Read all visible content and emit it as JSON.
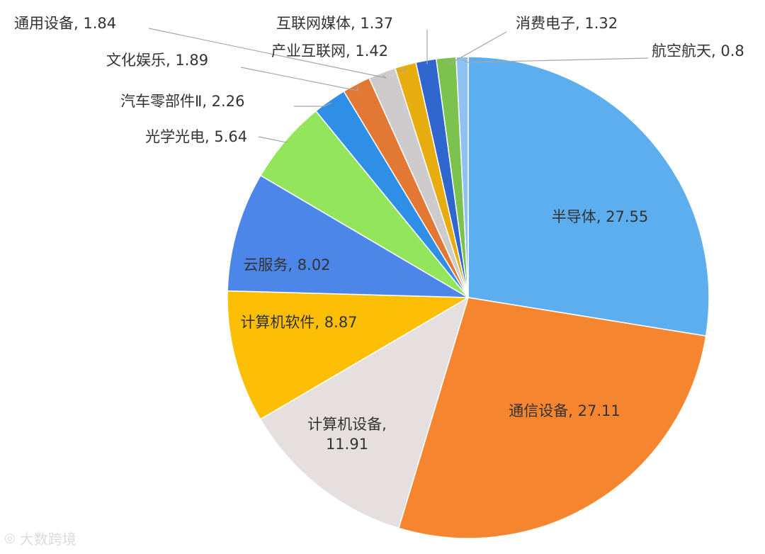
{
  "chart_data": {
    "type": "pie",
    "title": "",
    "slices": [
      {
        "name": "半导体",
        "value": 27.55,
        "label": "半导体, 27.55",
        "color": "#5daeef"
      },
      {
        "name": "通信设备",
        "value": 27.11,
        "label": "通信设备, 27.11",
        "color": "#f6852f"
      },
      {
        "name": "计算机设备",
        "value": 11.91,
        "label": "计算机设备,|11.91",
        "color": "#e5dfdf"
      },
      {
        "name": "计算机软件",
        "value": 8.87,
        "label": "计算机软件, 8.87",
        "color": "#fdbf06"
      },
      {
        "name": "云服务",
        "value": 8.02,
        "label": "云服务, 8.02",
        "color": "#4c86e9"
      },
      {
        "name": "光学光电",
        "value": 5.64,
        "label": "光学光电, 5.64",
        "color": "#93e65b"
      },
      {
        "name": "汽车零部件Ⅱ",
        "value": 2.26,
        "label": "汽车零部件Ⅱ, 2.26",
        "color": "#2f8ee6"
      },
      {
        "name": "文化娱乐",
        "value": 1.89,
        "label": "文化娱乐, 1.89",
        "color": "#e37834"
      },
      {
        "name": "通用设备",
        "value": 1.84,
        "label": "通用设备, 1.84",
        "color": "#cdcbcb"
      },
      {
        "name": "产业互联网",
        "value": 1.42,
        "label": "产业互联网, 1.42",
        "color": "#e7ad0f"
      },
      {
        "name": "互联网媒体",
        "value": 1.37,
        "label": "互联网媒体, 1.37",
        "color": "#3067cf"
      },
      {
        "name": "消费电子",
        "value": 1.32,
        "label": "消费电子, 1.32",
        "color": "#7cc24f"
      },
      {
        "name": "航空航天",
        "value": 0.8,
        "label": "航空航天, 0.8",
        "color": "#8fc2f2"
      }
    ]
  },
  "watermark": {
    "text": "大数跨境"
  }
}
